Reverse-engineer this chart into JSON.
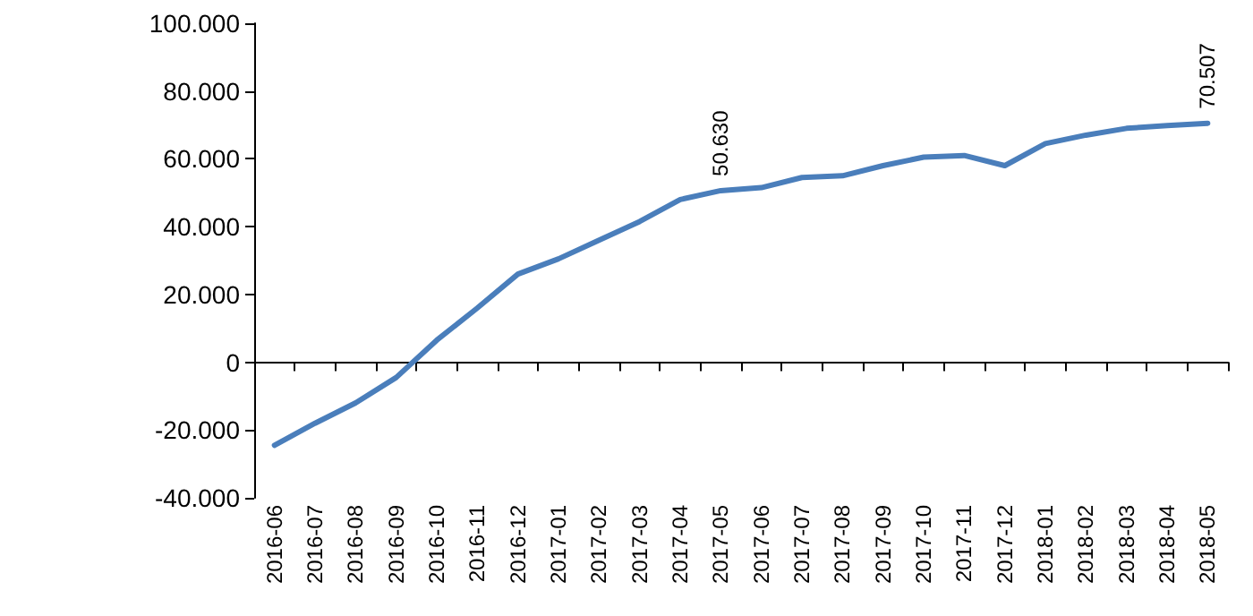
{
  "chart_data": {
    "type": "line",
    "categories": [
      "2016-06",
      "2016-07",
      "2016-08",
      "2016-09",
      "2016-10",
      "2016-11",
      "2016-12",
      "2017-01",
      "2017-02",
      "2017-03",
      "2017-04",
      "2017-05",
      "2017-06",
      "2017-07",
      "2017-08",
      "2017-09",
      "2017-10",
      "2017-11",
      "2017-12",
      "2018-01",
      "2018-02",
      "2018-03",
      "2018-04",
      "2018-05"
    ],
    "series": [
      {
        "color": "#4a7ebb",
        "values": [
          -24500,
          -18000,
          -12000,
          -4500,
          6500,
          16000,
          26000,
          30500,
          36000,
          41500,
          48000,
          50630,
          51500,
          54500,
          55000,
          58000,
          60500,
          61000,
          58000,
          64500,
          67000,
          69000,
          69800,
          70507
        ],
        "value_labels": [
          null,
          null,
          null,
          null,
          null,
          null,
          null,
          null,
          null,
          null,
          null,
          "50.630",
          null,
          null,
          null,
          null,
          null,
          null,
          null,
          null,
          null,
          null,
          null,
          "70.507"
        ]
      }
    ],
    "ylim": [
      -40000,
      100000
    ],
    "yticks": [
      {
        "value": -40000,
        "label": "-40.000"
      },
      {
        "value": -20000,
        "label": "-20.000"
      },
      0,
      {
        "value": 20000,
        "label": "20.000"
      },
      {
        "value": 40000,
        "label": "40.000"
      },
      {
        "value": 60000,
        "label": "60.000"
      },
      {
        "value": 80000,
        "label": "80.000"
      },
      {
        "value": 100000,
        "label": "100.000"
      }
    ],
    "marker": "none",
    "line_style": "solid"
  }
}
